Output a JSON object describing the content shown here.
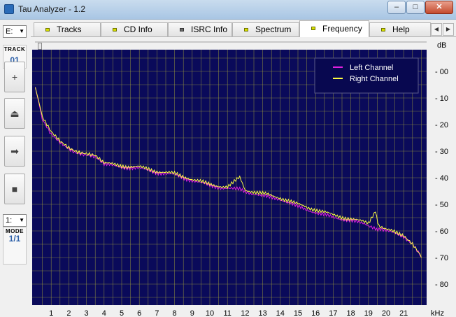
{
  "window": {
    "title": "Tau Analyzer - 1.2",
    "minimize_glyph": "–",
    "maximize_glyph": "□",
    "close_glyph": "✕"
  },
  "sidebar": {
    "drive_value": "E:",
    "track_label": "TRACK",
    "track_value": "01",
    "buttons": [
      {
        "name": "zoom-in-button",
        "glyph": "+"
      },
      {
        "name": "eject-button",
        "glyph": "⏏"
      },
      {
        "name": "play-button",
        "glyph": "➡"
      },
      {
        "name": "stop-button",
        "glyph": "■"
      }
    ],
    "mode_select_value": "1:",
    "mode_label": "MODE",
    "mode_value": "1/1"
  },
  "tabs": [
    {
      "label": "Tracks",
      "led": "on"
    },
    {
      "label": "CD Info",
      "led": "on"
    },
    {
      "label": "ISRC Info",
      "led": "off"
    },
    {
      "label": "Spectrum",
      "led": "on"
    },
    {
      "label": "Frequency",
      "led": "on",
      "active": true
    },
    {
      "label": "Help",
      "led": "on"
    }
  ],
  "tab_scroll": {
    "left": "◀",
    "right": "▶"
  },
  "chart_data": {
    "type": "line",
    "title": "",
    "x": [
      0.1,
      0.5,
      1,
      1.5,
      2,
      2.5,
      3,
      3.5,
      4,
      5,
      6,
      7,
      8,
      9,
      10,
      11,
      11.7,
      12,
      13,
      14,
      15,
      16,
      17,
      18,
      19,
      19.4,
      19.6,
      20,
      21,
      21.5,
      22
    ],
    "series": [
      {
        "name": "Left Channel",
        "color": "#e020e0",
        "values": [
          6,
          18,
          24,
          27,
          29,
          30.5,
          31.5,
          32.5,
          35,
          36,
          36.5,
          38,
          39,
          41,
          43,
          44,
          44.5,
          45,
          47,
          48,
          51,
          53,
          55,
          56,
          58,
          59,
          59.5,
          60,
          62,
          65,
          70
        ]
      },
      {
        "name": "Right Channel",
        "color": "#ffff40",
        "values": [
          6,
          17,
          23,
          26.5,
          28.5,
          30,
          31,
          32,
          34.5,
          35.5,
          36,
          37.5,
          38.5,
          40.5,
          42.5,
          43.5,
          40,
          44.5,
          46,
          47.5,
          50,
          52,
          54,
          55.5,
          57,
          52.5,
          58.5,
          59.5,
          61.5,
          65,
          70
        ]
      }
    ],
    "xlabel": "kHz",
    "ylabel": "dB",
    "xlim": [
      0,
      22
    ],
    "ylim": [
      0,
      90
    ],
    "y_reversed": true,
    "xticks": [
      1,
      2,
      3,
      4,
      5,
      6,
      7,
      8,
      9,
      10,
      11,
      12,
      13,
      14,
      15,
      16,
      17,
      18,
      19,
      20,
      21
    ],
    "yticks": [
      0,
      10,
      20,
      30,
      40,
      50,
      60,
      70,
      80
    ],
    "ytick_labels": [
      "- 00",
      "- 10",
      "- 20",
      "- 30",
      "- 40",
      "- 50",
      "- 60",
      "- 70",
      "- 80"
    ],
    "grid": true,
    "legend": "top-right",
    "background": "#0a0a5a",
    "grid_color": "#9a9a3c"
  }
}
